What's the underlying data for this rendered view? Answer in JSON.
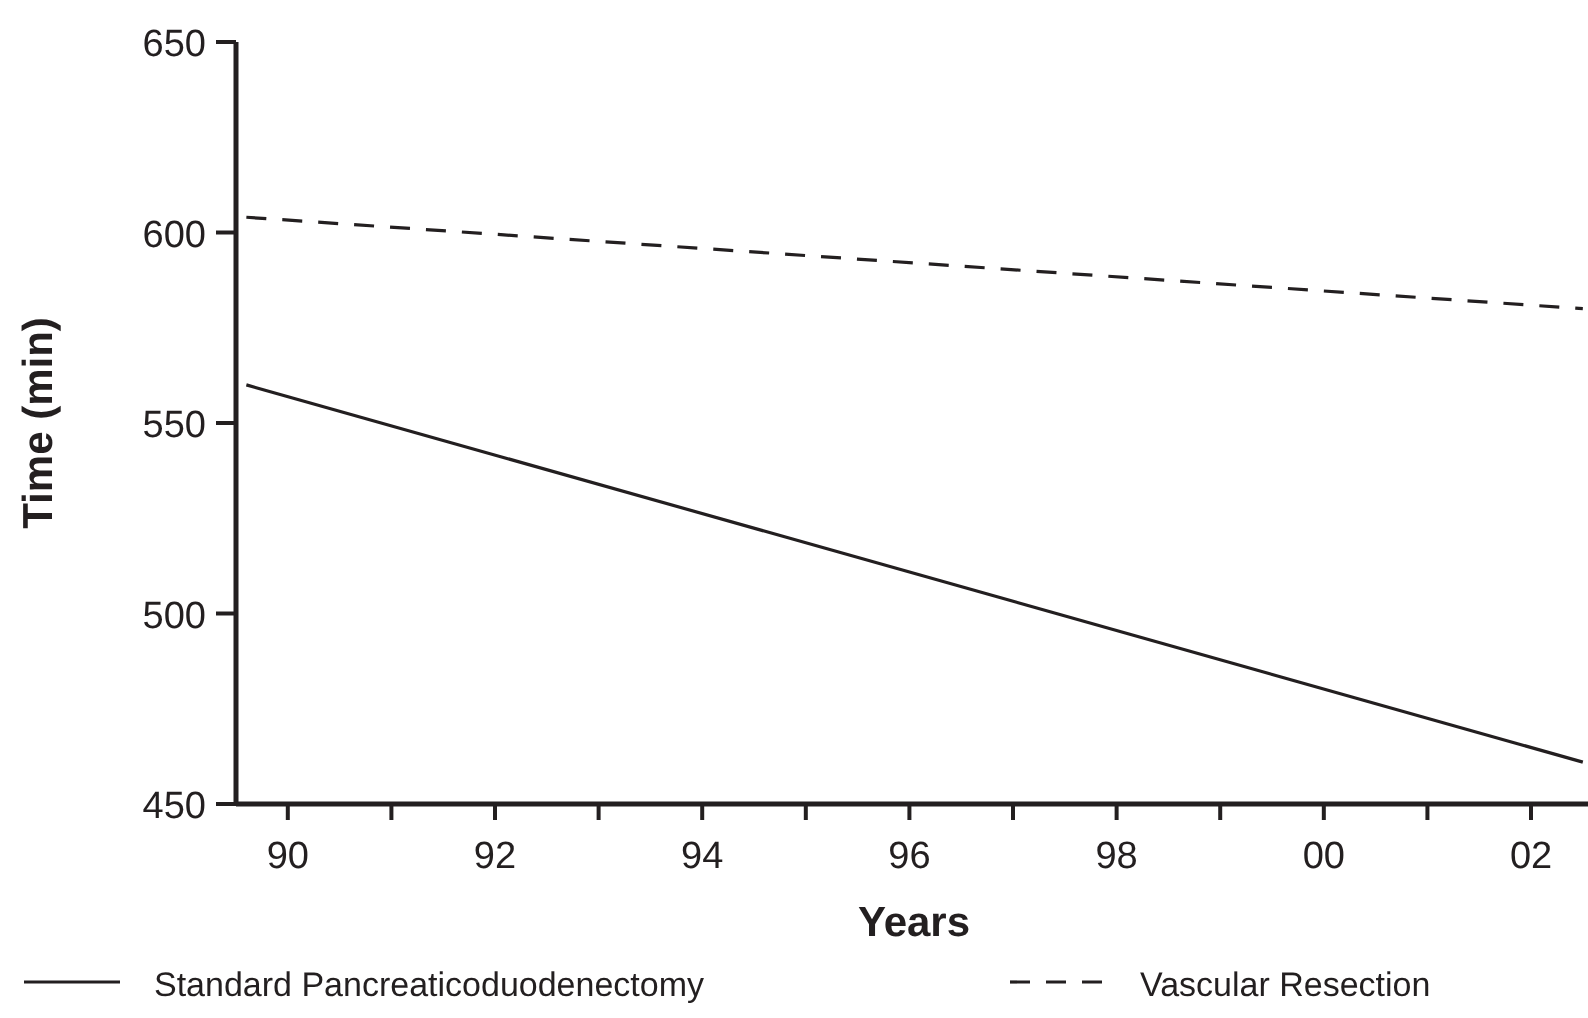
{
  "chart_data": {
    "type": "line",
    "xlabel": "Years",
    "ylabel": "Time (min)",
    "xlim": [
      1989.5,
      2002.55
    ],
    "ylim": [
      450,
      650
    ],
    "xticks": [
      {
        "value": 1990,
        "label": "90"
      },
      {
        "value": 1991,
        "label": null
      },
      {
        "value": 1992,
        "label": "92"
      },
      {
        "value": 1993,
        "label": null
      },
      {
        "value": 1994,
        "label": "94"
      },
      {
        "value": 1995,
        "label": null
      },
      {
        "value": 1996,
        "label": "96"
      },
      {
        "value": 1997,
        "label": null
      },
      {
        "value": 1998,
        "label": "98"
      },
      {
        "value": 1999,
        "label": null
      },
      {
        "value": 2000,
        "label": "00"
      },
      {
        "value": 2001,
        "label": null
      },
      {
        "value": 2002,
        "label": "02"
      }
    ],
    "yticks": [
      450,
      500,
      550,
      600,
      650
    ],
    "legend": "bottom",
    "grid": false,
    "x": [
      1989.6,
      2002.5
    ],
    "series": [
      {
        "name": "Standard Pancreaticoduodenectomy",
        "color": "#231f20",
        "line_style": "solid",
        "values": [
          560,
          461
        ]
      },
      {
        "name": "Vascular Resection",
        "color": "#231f20",
        "line_style": "dashed",
        "values": [
          604,
          580
        ]
      }
    ]
  }
}
